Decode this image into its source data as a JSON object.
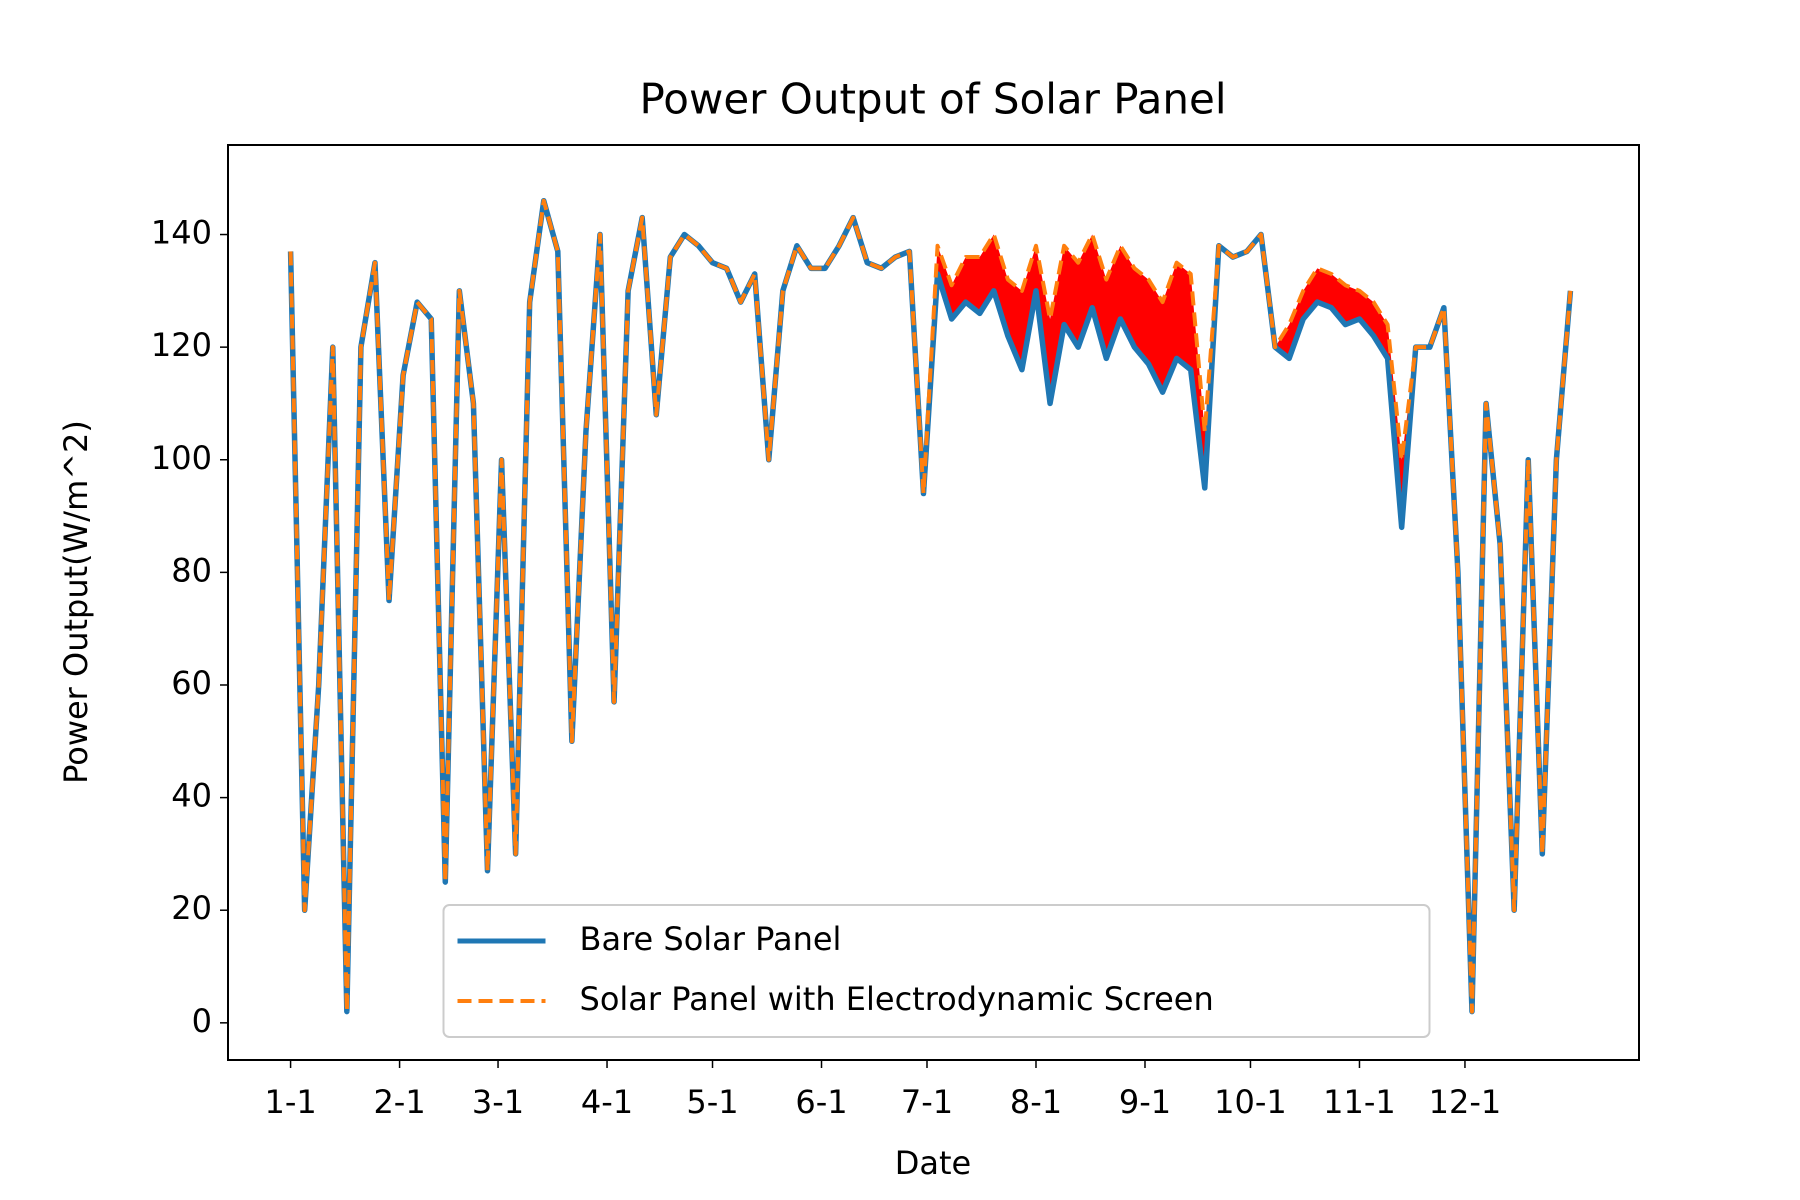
{
  "chart_data": {
    "type": "line",
    "title": "Power Output of Solar Panel",
    "x_label": "Date",
    "y_label": "Power Output(W/m^2)",
    "x": [
      0,
      4,
      8,
      12,
      16,
      20,
      24,
      28,
      32,
      36,
      40,
      44,
      48,
      52,
      56,
      60,
      64,
      68,
      72,
      76,
      80,
      84,
      88,
      92,
      96,
      100,
      104,
      108,
      112,
      116,
      120,
      124,
      128,
      132,
      136,
      140,
      144,
      148,
      152,
      156,
      160,
      164,
      168,
      172,
      176,
      180,
      184,
      188,
      192,
      196,
      200,
      204,
      208,
      212,
      216,
      220,
      224,
      228,
      232,
      236,
      240,
      244,
      248,
      252,
      256,
      260,
      264,
      268,
      272,
      276,
      280,
      284,
      288,
      292,
      296,
      300,
      304,
      308,
      312,
      316,
      320,
      324,
      328,
      332,
      336,
      340,
      344,
      348,
      352,
      356,
      360,
      364
    ],
    "series": [
      {
        "name": "Bare Solar Panel",
        "color": "#1f77b4",
        "dash": false,
        "values": [
          137,
          20,
          60,
          120,
          2,
          120,
          135,
          75,
          115,
          128,
          125,
          25,
          130,
          110,
          27,
          100,
          30,
          128,
          146,
          137,
          50,
          105,
          140,
          57,
          130,
          143,
          108,
          136,
          140,
          138,
          135,
          134,
          128,
          133,
          100,
          130,
          138,
          134,
          134,
          138,
          143,
          135,
          134,
          136,
          137,
          94,
          133,
          125,
          128,
          126,
          130,
          122,
          116,
          130,
          110,
          124,
          120,
          127,
          118,
          125,
          120,
          117,
          112,
          118,
          116,
          95,
          138,
          136,
          137,
          140,
          120,
          118,
          125,
          128,
          127,
          124,
          125,
          122,
          118,
          88,
          120,
          120,
          127,
          80,
          2,
          110,
          85,
          20,
          100,
          30,
          100,
          130
        ]
      },
      {
        "name": "Solar Panel with Electrodynamic Screen",
        "color": "#ff7f0e",
        "dash": true,
        "values": [
          137,
          20,
          60,
          120,
          2,
          120,
          135,
          75,
          115,
          128,
          125,
          25,
          130,
          110,
          27,
          100,
          30,
          128,
          146,
          137,
          50,
          105,
          140,
          57,
          130,
          143,
          108,
          136,
          140,
          138,
          135,
          134,
          128,
          133,
          100,
          130,
          138,
          134,
          134,
          138,
          143,
          135,
          134,
          136,
          137,
          94,
          138,
          131,
          136,
          136,
          140,
          132,
          130,
          138,
          125,
          138,
          135,
          140,
          132,
          138,
          134,
          132,
          128,
          135,
          133,
          105,
          138,
          136,
          137,
          140,
          120,
          124,
          130,
          134,
          133,
          131,
          130,
          128,
          124,
          100,
          120,
          120,
          127,
          80,
          2,
          110,
          85,
          20,
          100,
          30,
          100,
          130
        ]
      }
    ],
    "fill_between_color": "#ff0000",
    "xlim": [
      -17.8,
      383.5
    ],
    "xticks": [
      {
        "value": 0,
        "label": "1-1"
      },
      {
        "value": 31,
        "label": "2-1"
      },
      {
        "value": 59,
        "label": "3-1"
      },
      {
        "value": 90,
        "label": "4-1"
      },
      {
        "value": 120,
        "label": "5-1"
      },
      {
        "value": 151,
        "label": "6-1"
      },
      {
        "value": 181,
        "label": "7-1"
      },
      {
        "value": 212,
        "label": "8-1"
      },
      {
        "value": 243,
        "label": "9-1"
      },
      {
        "value": 273,
        "label": "10-1"
      },
      {
        "value": 304,
        "label": "11-1"
      },
      {
        "value": 334,
        "label": "12-1"
      }
    ],
    "ylim": [
      -6.6,
      155.9
    ],
    "yticks": [
      0,
      20,
      40,
      60,
      80,
      100,
      120,
      140
    ],
    "grid": false,
    "legend": "lower center"
  }
}
